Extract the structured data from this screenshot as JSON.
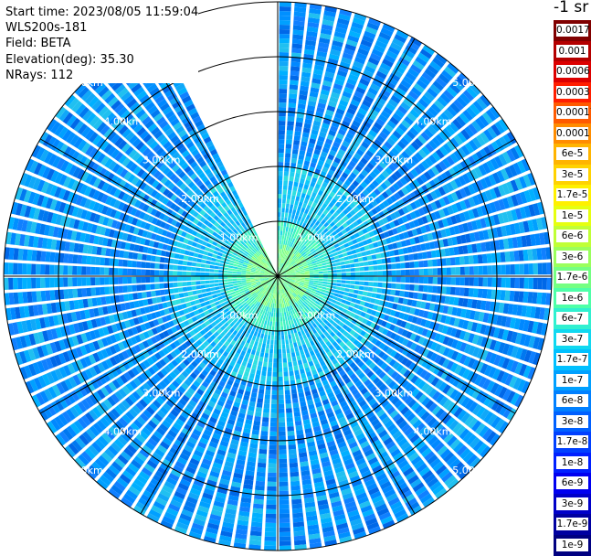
{
  "info": {
    "start_time": "Start time: 2023/08/05 11:59:04",
    "instrument": "WLS200s-181",
    "field": "Field: BETA",
    "elevation": "Elevation(deg): 35.30",
    "nrays": "NRays: 112"
  },
  "colorbar": {
    "title": "-1 sr",
    "labels": [
      "0.0017",
      "0.001",
      "0.0006",
      "0.0003",
      "0.00017",
      "0.0001",
      "6e-5",
      "3e-5",
      "1.7e-5",
      "1e-5",
      "6e-6",
      "3e-6",
      "1.7e-6",
      "1e-6",
      "6e-7",
      "3e-7",
      "1.7e-7",
      "1e-7",
      "6e-8",
      "3e-8",
      "1.7e-8",
      "1e-8",
      "6e-9",
      "3e-9",
      "1.7e-9",
      "1e-9"
    ],
    "colors": [
      "#800000",
      "#b40000",
      "#dc0000",
      "#ff1e00",
      "#ff5a00",
      "#ff8c00",
      "#ffb400",
      "#ffd200",
      "#fff000",
      "#e6ff10",
      "#c0ff36",
      "#9aff5c",
      "#74ff82",
      "#4effa8",
      "#30f0d0",
      "#10d8f0",
      "#00c0ff",
      "#00a0ff",
      "#0080ff",
      "#0060ff",
      "#0040ff",
      "#0020ff",
      "#0000f0",
      "#0000c8",
      "#0000a0",
      "#000080"
    ]
  },
  "chart_data": {
    "type": "heatmap",
    "projection": "polar PPI",
    "range_unit": "km",
    "max_range_km": 5.0,
    "nrays": 112,
    "range_ring_labels": [
      "1.00km",
      "2.00km",
      "3.00km",
      "4.00km",
      "5.00km"
    ],
    "spoke_angles_deg": [
      0,
      30,
      60,
      90,
      120,
      150,
      180,
      210,
      240,
      270,
      300,
      330
    ],
    "data_gap_azimuth_deg": [
      -25,
      0
    ],
    "dominant_levels": [
      {
        "range_km": [
          0.0,
          1.0
        ],
        "typical_beta": "1.7e-7 to 6e-7"
      },
      {
        "range_km": [
          1.0,
          2.0
        ],
        "typical_beta": "6e-8 to 1.7e-7"
      },
      {
        "range_km": [
          2.0,
          5.0
        ],
        "typical_beta": "1e-8 to 6e-8"
      }
    ]
  }
}
